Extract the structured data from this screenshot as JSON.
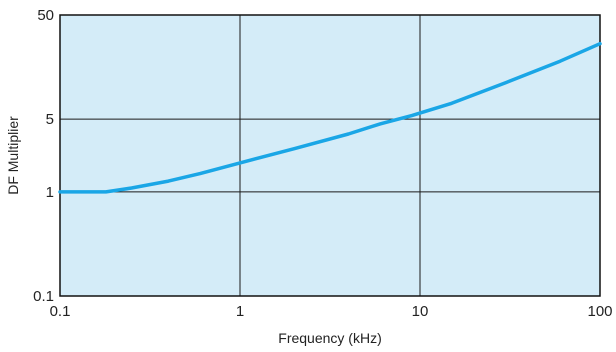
{
  "chart_data": {
    "type": "line",
    "xlabel": "Frequency (kHz)",
    "ylabel": "DF Multiplier",
    "x_scale": "log",
    "y_scale": "log",
    "xlim": [
      0.1,
      100
    ],
    "ylim": [
      0.1,
      50
    ],
    "x_ticks": [
      {
        "value": 0.1,
        "label": "0.1"
      },
      {
        "value": 1,
        "label": "1"
      },
      {
        "value": 10,
        "label": "10"
      },
      {
        "value": 100,
        "label": "100"
      }
    ],
    "y_ticks": [
      {
        "value": 0.1,
        "label": "0.1"
      },
      {
        "value": 1,
        "label": "1"
      },
      {
        "value": 5,
        "label": "5"
      },
      {
        "value": 50,
        "label": "50"
      }
    ],
    "grid": true,
    "plot_background": "#d4ecf8",
    "line_color": "#1aa6e6",
    "series": [
      {
        "x": [
          0.1,
          0.18,
          0.25,
          0.4,
          0.6,
          1,
          2,
          4,
          6,
          9,
          15,
          30,
          60,
          100
        ],
        "y": [
          1.0,
          1.0,
          1.09,
          1.27,
          1.5,
          1.9,
          2.6,
          3.6,
          4.5,
          5.4,
          7.1,
          11.2,
          18.0,
          26.5
        ]
      }
    ]
  }
}
